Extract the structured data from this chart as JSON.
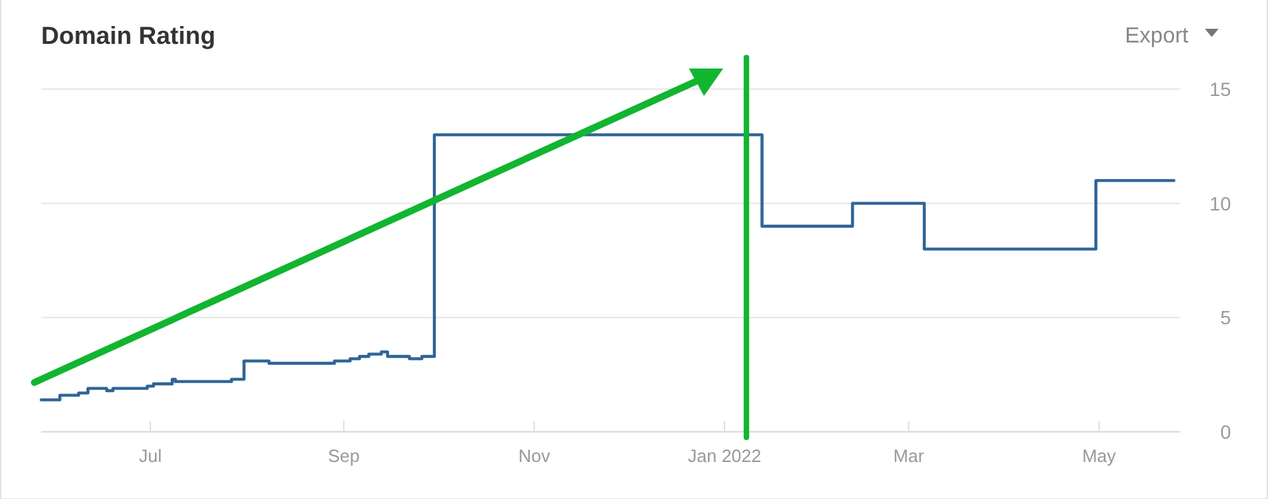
{
  "chart_data": {
    "type": "step",
    "title": "Domain Rating",
    "annotations": [
      "Export"
    ],
    "x": [
      "2021-05-27",
      "2021-06-02",
      "2021-06-08",
      "2021-06-11",
      "2021-06-17",
      "2021-06-19",
      "2021-06-30",
      "2021-07-02",
      "2021-07-08",
      "2021-07-09",
      "2021-07-27",
      "2021-07-31",
      "2021-08-08",
      "2021-08-29",
      "2021-09-03",
      "2021-09-06",
      "2021-09-09",
      "2021-09-13",
      "2021-09-15",
      "2021-09-22",
      "2021-09-26",
      "2021-09-30",
      "2022-01-13",
      "2022-02-11",
      "2022-03-06",
      "2022-04-30",
      "2022-05-25"
    ],
    "series": [
      {
        "color": "#2f6497",
        "values": [
          1.4,
          1.6,
          1.7,
          1.9,
          1.8,
          1.9,
          2.0,
          2.1,
          2.3,
          2.2,
          2.3,
          3.1,
          3.0,
          3.1,
          3.2,
          3.3,
          3.4,
          3.5,
          3.3,
          3.2,
          3.3,
          13.0,
          9.0,
          10.0,
          8.0,
          11.0,
          11.0
        ]
      }
    ],
    "xlim": [
      "2021-05-27",
      "2022-05-27"
    ],
    "xticks": [
      {
        "value": "2021-07-01",
        "label": "Jul"
      },
      {
        "value": "2021-09-01",
        "label": "Sep"
      },
      {
        "value": "2021-11-01",
        "label": "Nov"
      },
      {
        "value": "2022-01-01",
        "label": "Jan 2022"
      },
      {
        "value": "2022-03-01",
        "label": "Mar"
      },
      {
        "value": "2022-05-01",
        "label": "May"
      }
    ],
    "ylim": [
      0,
      15
    ],
    "yticks": [
      0,
      5,
      10,
      15
    ],
    "grid": "y",
    "marker": "none",
    "line_style": "solid",
    "ref_lines": [
      {
        "axis": "x",
        "value": "2022-01-08",
        "color": "#12b530"
      }
    ]
  }
}
